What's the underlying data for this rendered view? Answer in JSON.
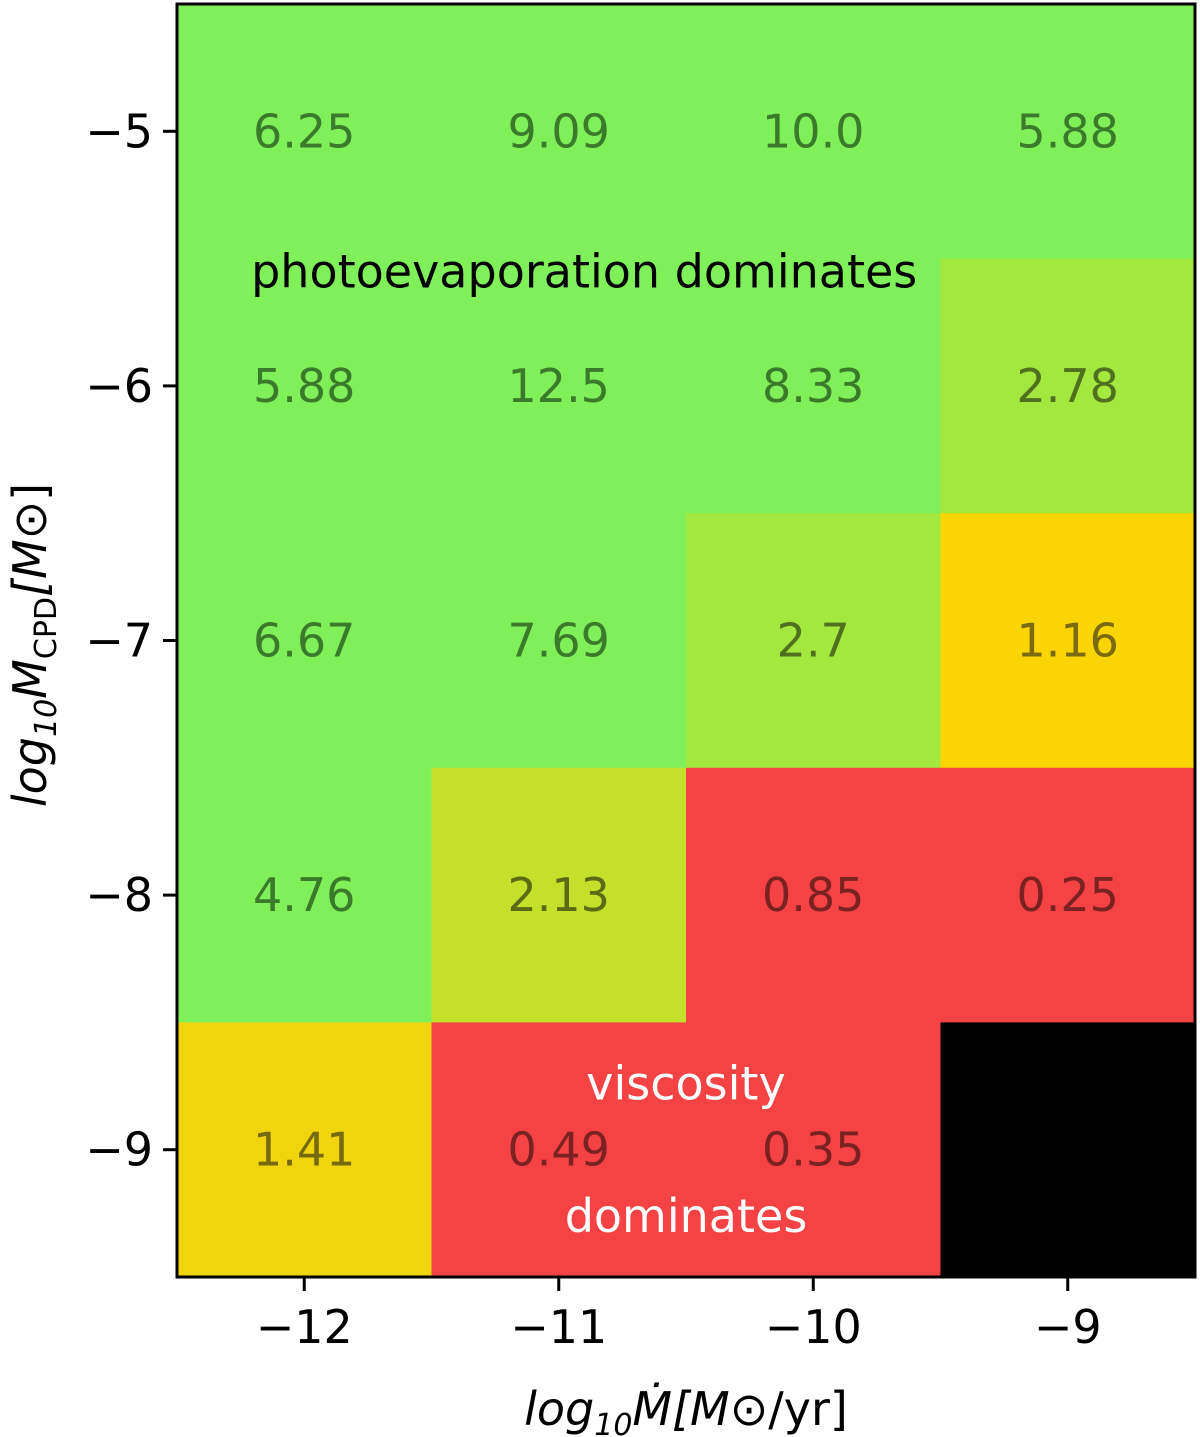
{
  "chart_data": {
    "type": "heatmap",
    "x": [
      -12,
      -11,
      -10,
      -9
    ],
    "y": [
      -5,
      -6,
      -7,
      -8,
      -9
    ],
    "x_tick_labels": [
      "−12",
      "−11",
      "−10",
      "−9"
    ],
    "y_tick_labels": [
      "−5",
      "−6",
      "−7",
      "−8",
      "−9"
    ],
    "values": [
      [
        6.25,
        9.09,
        10.0,
        5.88
      ],
      [
        5.88,
        12.5,
        8.33,
        2.78
      ],
      [
        6.67,
        7.69,
        2.7,
        1.16
      ],
      [
        4.76,
        2.13,
        0.85,
        0.25
      ],
      [
        1.41,
        0.49,
        0.35,
        null
      ]
    ],
    "value_labels": [
      [
        "6.25",
        "9.09",
        "10.0",
        "5.88"
      ],
      [
        "5.88",
        "12.5",
        "8.33",
        "2.78"
      ],
      [
        "6.67",
        "7.69",
        "2.7",
        "1.16"
      ],
      [
        "4.76",
        "2.13",
        "0.85",
        "0.25"
      ],
      [
        "1.41",
        "0.49",
        "0.35",
        ""
      ]
    ],
    "cell_colors": [
      [
        "#7ff05a",
        "#7ff05a",
        "#7ff05a",
        "#7ff05a"
      ],
      [
        "#7ff05a",
        "#7ff05a",
        "#7ff05a",
        "#a2e83e"
      ],
      [
        "#7ff05a",
        "#7ff05a",
        "#a2e83e",
        "#fbd404"
      ],
      [
        "#7ff05a",
        "#c4e02a",
        "#f54244",
        "#f54244"
      ],
      [
        "#f0d40e",
        "#f54244",
        "#f54244",
        "#000000"
      ]
    ],
    "value_label_colors": [
      [
        "#3b7a2a",
        "#3b7a2a",
        "#3b7a2a",
        "#3b7a2a"
      ],
      [
        "#3b7a2a",
        "#3b7a2a",
        "#3b7a2a",
        "#4f701e"
      ],
      [
        "#3b7a2a",
        "#3b7a2a",
        "#4f701e",
        "#7a6a10"
      ],
      [
        "#3b7a2a",
        "#5c6a16",
        "#7a2222",
        "#7a2222"
      ],
      [
        "#766a10",
        "#7a2222",
        "#7a2222",
        "#000000"
      ]
    ],
    "xlim": [
      -12.5,
      -8.5
    ],
    "ylim": [
      -9.5,
      -4.5
    ],
    "xlabel_parts": {
      "pre": "log",
      "sub": "10",
      "mid": "Ṁ[M",
      "sun": "⊙",
      "post": "/yr]"
    },
    "ylabel_parts": {
      "pre": "log",
      "sub": "10",
      "mid": "M",
      "sub2": "CPD",
      "open": "[M",
      "sun": "⊙",
      "post": "]"
    },
    "annotations": [
      {
        "text": "photoevaporation  dominates",
        "x": -10.9,
        "y": -5.55,
        "color": "#000000"
      },
      {
        "text": "viscosity",
        "x": -10.5,
        "y": -8.74,
        "color": "#ffffff"
      },
      {
        "text": "dominates",
        "x": -10.5,
        "y": -9.26,
        "color": "#ffffff"
      }
    ],
    "grid": false
  }
}
